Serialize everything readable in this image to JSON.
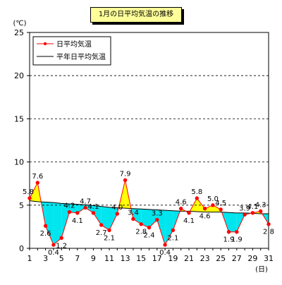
{
  "chart_data": {
    "type": "line",
    "title": "1月の日平均気温の推移",
    "y_unit": "(℃)",
    "x_unit": "(日)",
    "ylim": [
      0,
      25
    ],
    "yticks": [
      0,
      5,
      10,
      15,
      20,
      25
    ],
    "xticks": [
      1,
      3,
      5,
      7,
      9,
      11,
      13,
      15,
      17,
      19,
      21,
      23,
      25,
      27,
      29,
      31
    ],
    "x": [
      1,
      2,
      3,
      4,
      5,
      6,
      7,
      8,
      9,
      10,
      11,
      12,
      13,
      14,
      15,
      16,
      17,
      18,
      19,
      20,
      21,
      22,
      23,
      24,
      25,
      26,
      27,
      28,
      29,
      30,
      31
    ],
    "legend_position": "top-left",
    "grid": "horizontal",
    "series": [
      {
        "name": "日平均気温",
        "values": [
          5.8,
          7.6,
          2.6,
          0.4,
          1.2,
          4.2,
          4.1,
          4.7,
          4.1,
          2.7,
          2.1,
          4.0,
          7.9,
          3.4,
          2.8,
          2.4,
          3.3,
          0.4,
          2.1,
          4.6,
          4.1,
          5.8,
          4.6,
          5.0,
          4.5,
          1.9,
          1.9,
          3.9,
          4.1,
          4.3,
          2.8
        ],
        "labels": [
          "5.8",
          "7.6",
          "2.6",
          "0.4",
          "1.2",
          "4.2",
          "4.1",
          "4.7",
          "4.1",
          "2.7",
          "2.1",
          "4.0",
          "7.9",
          "3.4",
          "2.8",
          "2.4",
          "3.3",
          "0.4",
          "2.1",
          "4.6",
          "4.1",
          "5.8",
          "4.6",
          "5.0",
          "4.5",
          "1.9",
          "1.9",
          "3.9",
          "4.1",
          "4.3",
          "2.8"
        ],
        "color": "#ff0000"
      },
      {
        "name": "平年日平均気温",
        "values": [
          5.5,
          5.4,
          5.35,
          5.3,
          5.2,
          5.15,
          5.1,
          5.05,
          4.95,
          4.85,
          4.75,
          4.7,
          4.65,
          4.6,
          4.55,
          4.5,
          4.45,
          4.4,
          4.35,
          4.3,
          4.3,
          4.25,
          4.2,
          4.2,
          4.2,
          4.15,
          4.1,
          4.1,
          4.05,
          4.0,
          4.0
        ],
        "color": "#000000"
      }
    ],
    "fill_above_color": "#ffff00",
    "fill_below_color": "#00e5ee"
  }
}
